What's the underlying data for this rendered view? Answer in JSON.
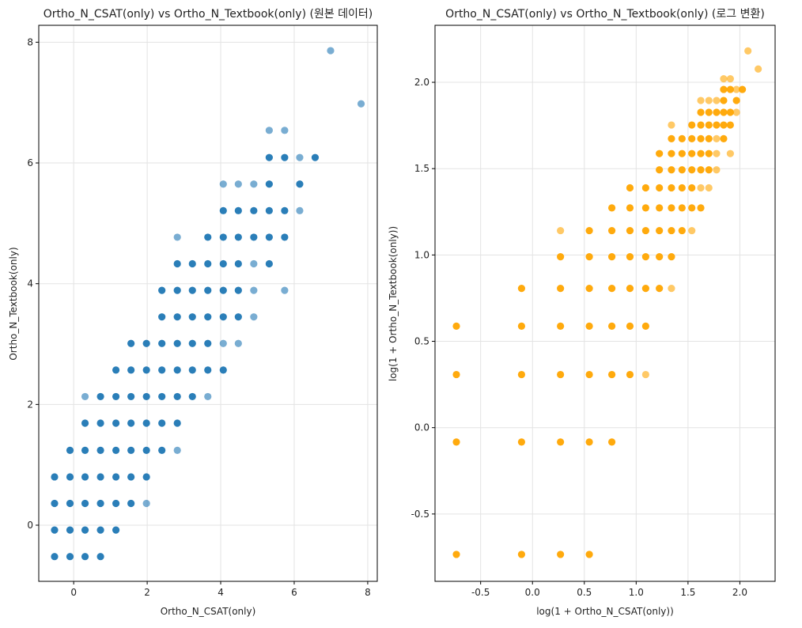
{
  "chart_data": [
    {
      "type": "scatter",
      "title": "Ortho_N_CSAT(only) vs Ortho_N_Textbook(only) (원본 데이터)",
      "xlabel": "Ortho_N_CSAT(only)",
      "ylabel": "Ortho_N_Textbook(only)",
      "xlim": [
        -0.95,
        8.26
      ],
      "ylim": [
        -0.93,
        8.28
      ],
      "xticks": [
        0,
        2,
        4,
        6,
        8
      ],
      "yticks": [
        0,
        2,
        4,
        6,
        8
      ],
      "xtick_labels": [
        "0",
        "2",
        "4",
        "6",
        "8"
      ],
      "ytick_labels": [
        "0",
        "2",
        "4",
        "6",
        "8"
      ],
      "grid": true,
      "color": "#1f77b4",
      "transform": "none",
      "rows": [
        {
          "y": -0.52,
          "x": [
            -0.52,
            -0.1,
            0.31,
            0.73
          ],
          "light": []
        },
        {
          "y": -0.08,
          "x": [
            -0.52,
            -0.1,
            0.31,
            0.73,
            1.15
          ],
          "light": []
        },
        {
          "y": 0.36,
          "x": [
            -0.52,
            -0.1,
            0.31,
            0.73,
            1.15,
            1.56,
            1.98
          ],
          "light": [
            1.98
          ]
        },
        {
          "y": 0.8,
          "x": [
            -0.52,
            -0.1,
            0.31,
            0.73,
            1.15,
            1.56,
            1.98
          ],
          "light": []
        },
        {
          "y": 1.24,
          "x": [
            -0.1,
            0.31,
            0.73,
            1.15,
            1.56,
            1.98,
            2.4,
            2.82
          ],
          "light": [
            2.82
          ]
        },
        {
          "y": 1.69,
          "x": [
            0.31,
            0.73,
            1.15,
            1.56,
            1.98,
            2.4,
            2.82
          ],
          "light": []
        },
        {
          "y": 2.13,
          "x": [
            0.31,
            0.73,
            1.15,
            1.56,
            1.98,
            2.4,
            2.82,
            3.23,
            3.65
          ],
          "light": [
            0.31,
            3.65
          ]
        },
        {
          "y": 2.57,
          "x": [
            1.15,
            1.56,
            1.98,
            2.4,
            2.82,
            3.23,
            3.65,
            4.07
          ],
          "light": []
        },
        {
          "y": 3.01,
          "x": [
            1.56,
            1.98,
            2.4,
            2.82,
            3.23,
            3.65,
            4.07,
            4.48
          ],
          "light": [
            4.07,
            4.48
          ]
        },
        {
          "y": 3.45,
          "x": [
            2.4,
            2.82,
            3.23,
            3.65,
            4.07,
            4.48,
            4.9
          ],
          "light": [
            4.9
          ]
        },
        {
          "y": 3.89,
          "x": [
            2.4,
            2.82,
            3.23,
            3.65,
            4.07,
            4.48,
            4.9,
            5.74
          ],
          "light": [
            4.9,
            5.74
          ]
        },
        {
          "y": 4.33,
          "x": [
            2.82,
            3.23,
            3.65,
            4.07,
            4.48,
            4.9,
            5.32
          ],
          "light": [
            4.9
          ]
        },
        {
          "y": 4.77,
          "x": [
            2.82,
            3.65,
            4.07,
            4.48,
            4.9,
            5.32,
            5.74
          ],
          "light": [
            2.82
          ]
        },
        {
          "y": 5.21,
          "x": [
            4.07,
            4.48,
            4.9,
            5.32,
            5.74,
            6.15
          ],
          "light": [
            6.15
          ]
        },
        {
          "y": 5.65,
          "x": [
            4.07,
            4.48,
            4.9,
            5.32,
            6.15
          ],
          "light": [
            4.07,
            4.48,
            4.9
          ]
        },
        {
          "y": 6.09,
          "x": [
            5.32,
            5.74,
            6.15,
            6.57
          ],
          "light": [
            6.15
          ]
        },
        {
          "y": 6.54,
          "x": [
            5.32,
            5.74
          ],
          "light": [
            5.32,
            5.74
          ]
        },
        {
          "y": 6.98,
          "x": [
            7.82
          ],
          "light": [
            7.82
          ]
        },
        {
          "y": 7.86,
          "x": [
            6.99
          ],
          "light": [
            6.99
          ]
        }
      ]
    },
    {
      "type": "scatter",
      "title": "Ortho_N_CSAT(only) vs Ortho_N_Textbook(only) (로그 변환)",
      "xlabel": "log(1 + Ortho_N_CSAT(only))",
      "ylabel": "log(1 + Ortho_N_Textbook(only))",
      "xlim": [
        -0.94,
        2.34
      ],
      "ylim": [
        -0.89,
        2.33
      ],
      "xticks": [
        -0.5,
        0.0,
        0.5,
        1.0,
        1.5,
        2.0
      ],
      "yticks": [
        -0.5,
        0.0,
        0.5,
        1.0,
        1.5,
        2.0
      ],
      "xtick_labels": [
        "-0.5",
        "0.0",
        "0.5",
        "1.0",
        "1.5",
        "2.0"
      ],
      "ytick_labels": [
        "-0.5",
        "0.0",
        "0.5",
        "1.0",
        "1.5",
        "2.0"
      ],
      "grid": true,
      "color": "#ffa500",
      "transform": "log1p",
      "source": 0
    }
  ]
}
